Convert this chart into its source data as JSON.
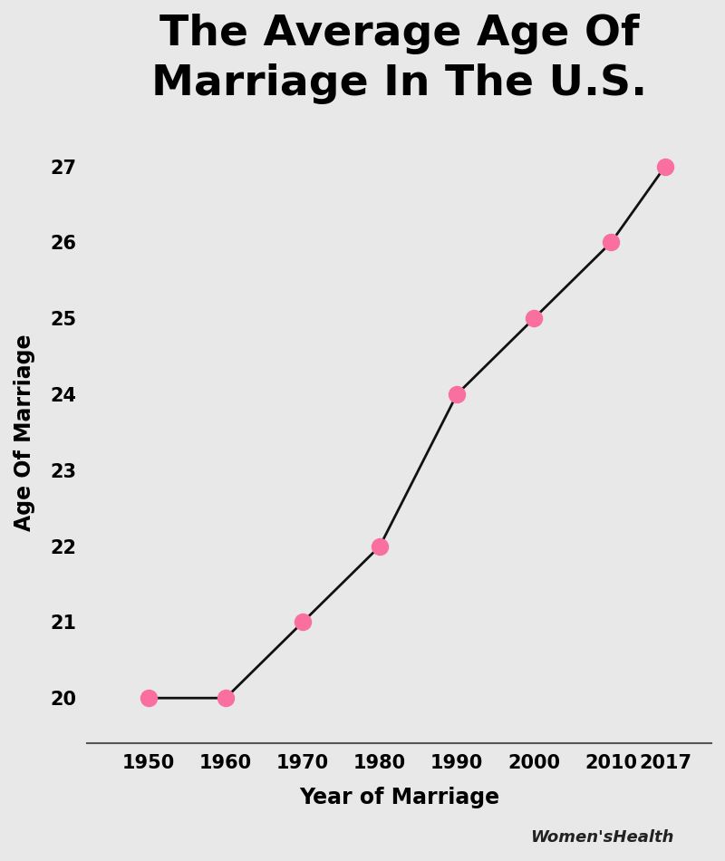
{
  "title": "The Average Age Of\nMarriage In The U.S.",
  "xlabel": "Year of Marriage",
  "ylabel": "Age Of Marriage",
  "x": [
    1950,
    1960,
    1970,
    1980,
    1990,
    2000,
    2010,
    2017
  ],
  "y": [
    20,
    20,
    21,
    22,
    24,
    25,
    26,
    27
  ],
  "line_color": "#111111",
  "marker_color": "#F96FA0",
  "marker_size": 13,
  "line_width": 2.0,
  "background_color": "#E8E8E8",
  "title_fontsize": 34,
  "axis_label_fontsize": 17,
  "tick_fontsize": 15,
  "ylim": [
    19.4,
    27.6
  ],
  "xlim": [
    1942,
    2023
  ],
  "yticks": [
    20,
    21,
    22,
    23,
    24,
    25,
    26,
    27
  ],
  "watermark": "Women'sHealth",
  "watermark_fontsize": 13
}
